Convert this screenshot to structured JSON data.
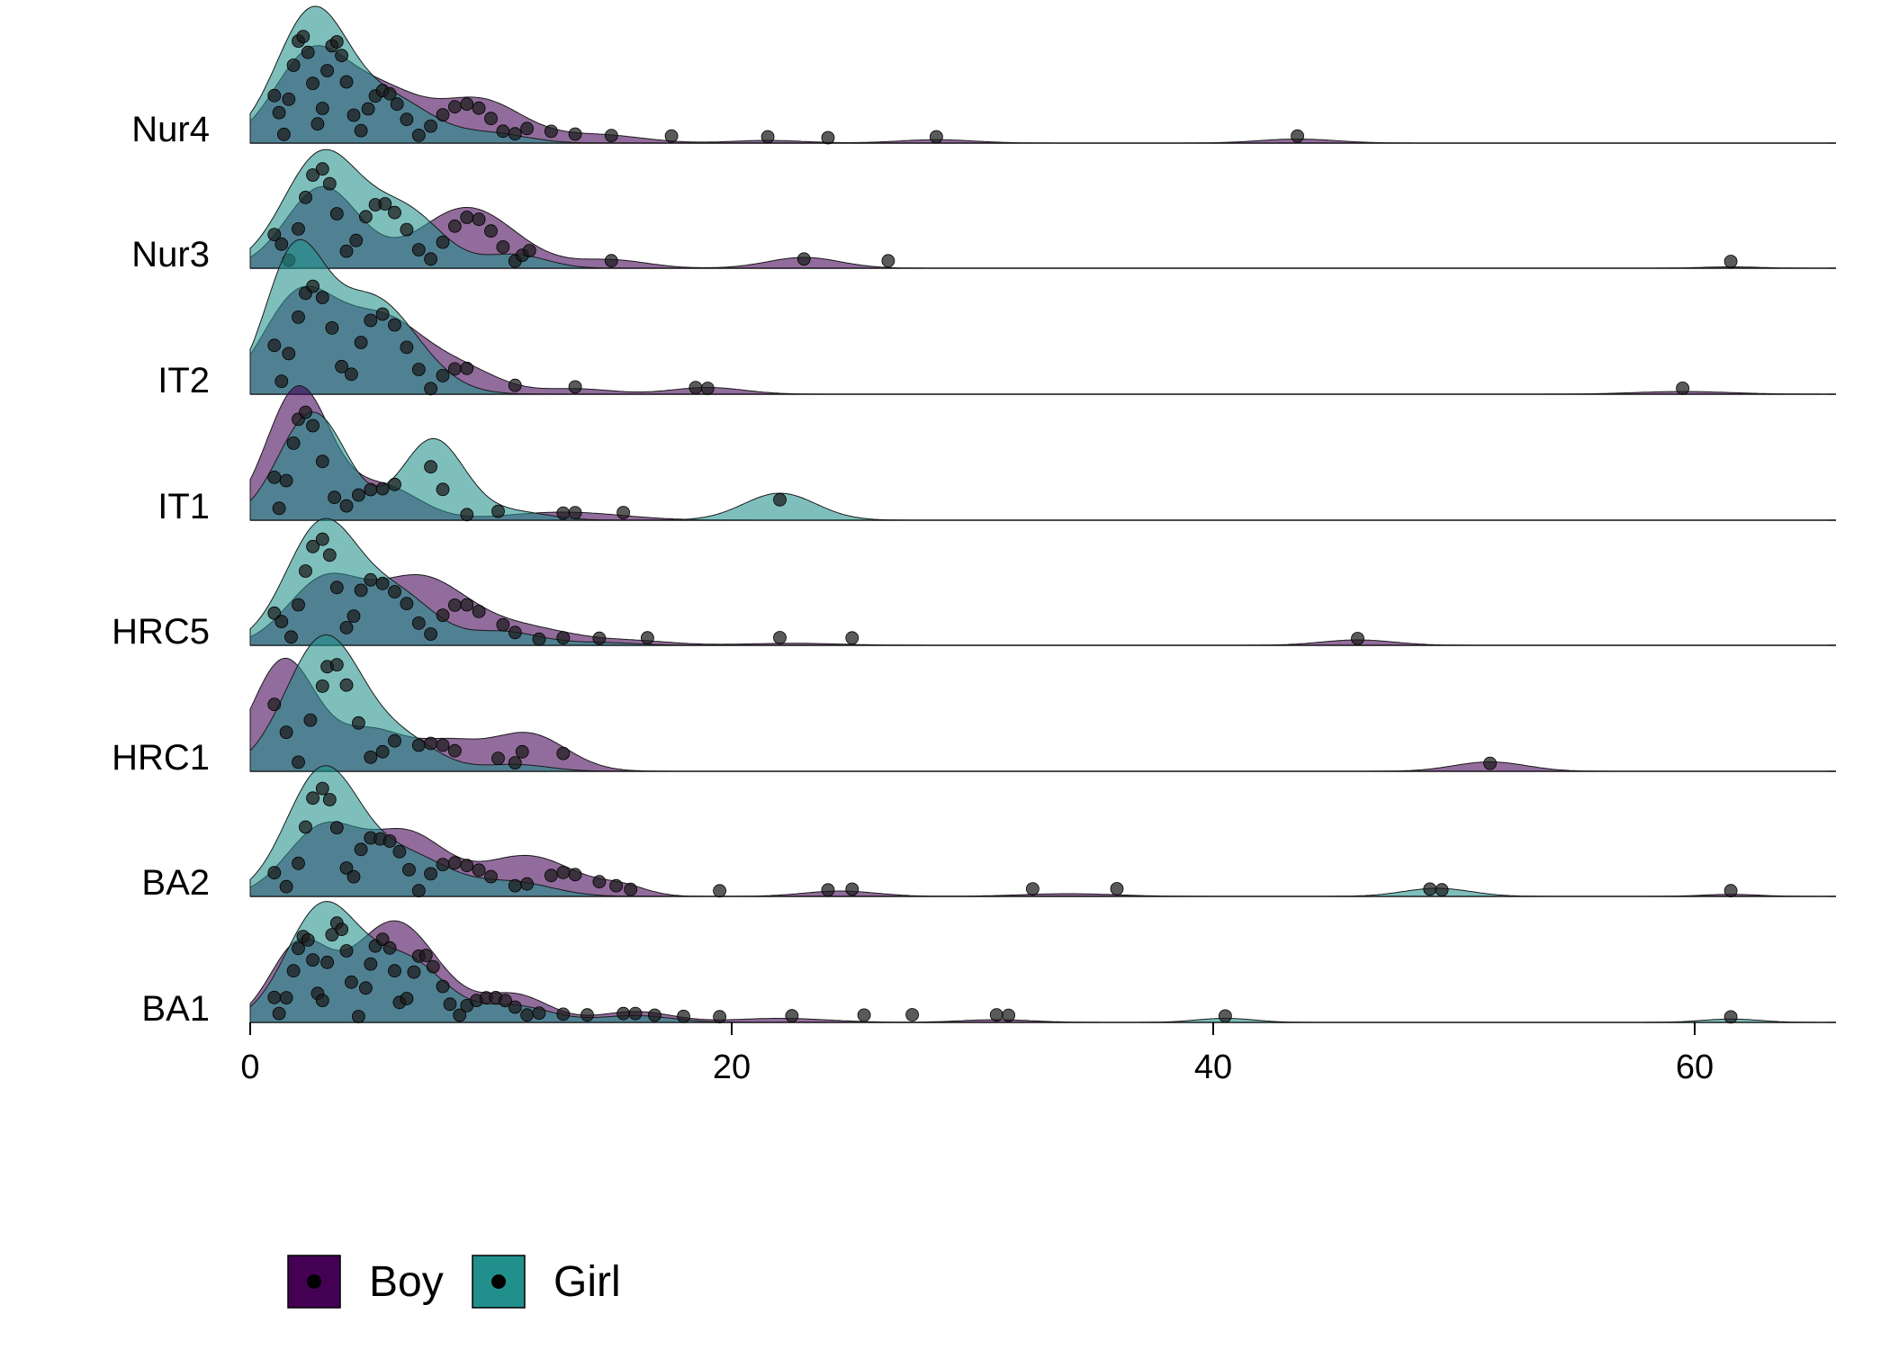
{
  "chart_data": {
    "type": "ridgeline",
    "title": "",
    "xlabel": "",
    "ylabel": "",
    "xlim": [
      0,
      66
    ],
    "x_ticks": [
      0,
      20,
      40,
      60
    ],
    "categories": [
      "BA1",
      "BA2",
      "HRC1",
      "HRC5",
      "IT1",
      "IT2",
      "Nur3",
      "Nur4"
    ],
    "series": [
      {
        "name": "Boy",
        "color": "#440154"
      },
      {
        "name": "Girl",
        "color": "#21908C"
      }
    ],
    "legend": {
      "position": "bottom-left",
      "entries": [
        "Boy",
        "Girl"
      ]
    },
    "grid": false,
    "densities": {
      "BA1": {
        "Boy": [
          [
            2,
            0.55,
            1.2
          ],
          [
            6,
            0.75,
            1.8
          ],
          [
            11,
            0.2,
            1.4
          ],
          [
            16,
            0.08,
            1.5
          ],
          [
            22,
            0.03,
            2
          ],
          [
            31,
            0.02,
            1.5
          ]
        ],
        "Girl": [
          [
            3,
            0.85,
            1.5
          ],
          [
            6.5,
            0.45,
            1.6
          ],
          [
            11,
            0.12,
            1.5
          ],
          [
            16,
            0.05,
            1.5
          ],
          [
            40.5,
            0.03,
            1.2
          ],
          [
            61.5,
            0.025,
            1.2
          ]
        ]
      },
      "BA2": {
        "Boy": [
          [
            3,
            0.5,
            1.5
          ],
          [
            6.5,
            0.45,
            1.6
          ],
          [
            11.5,
            0.3,
            2
          ],
          [
            15.5,
            0.06,
            1
          ],
          [
            24.5,
            0.04,
            1.5
          ],
          [
            34,
            0.02,
            2
          ],
          [
            61.5,
            0.015,
            1.2
          ]
        ],
        "Girl": [
          [
            3,
            0.92,
            1.5
          ],
          [
            6.5,
            0.3,
            1.8
          ],
          [
            11,
            0.1,
            1.6
          ],
          [
            49.3,
            0.06,
            1.4
          ]
        ]
      },
      "HRC1": {
        "Boy": [
          [
            1.4,
            0.82,
            1.3
          ],
          [
            5,
            0.3,
            1.5
          ],
          [
            8.2,
            0.18,
            1.3
          ],
          [
            11.5,
            0.28,
            1.6
          ],
          [
            51.5,
            0.07,
            1.5
          ]
        ],
        "Girl": [
          [
            3.1,
            1.0,
            1.6
          ],
          [
            6.5,
            0.2,
            1.4
          ],
          [
            11,
            0.05,
            1.4
          ]
        ]
      },
      "HRC5": {
        "Boy": [
          [
            3,
            0.45,
            1.5
          ],
          [
            7,
            0.5,
            2
          ],
          [
            11.5,
            0.12,
            2
          ],
          [
            16,
            0.03,
            1.6
          ],
          [
            22.5,
            0.015,
            2
          ],
          [
            46,
            0.04,
            1.5
          ]
        ],
        "Girl": [
          [
            3,
            0.9,
            1.5
          ],
          [
            6.2,
            0.35,
            1.5
          ],
          [
            10.5,
            0.1,
            1.5
          ],
          [
            14.5,
            0.02,
            1.5
          ]
        ]
      },
      "IT1": {
        "Boy": [
          [
            2,
            0.98,
            1.3
          ],
          [
            5.5,
            0.25,
            1.5
          ],
          [
            13,
            0.06,
            2.4
          ]
        ],
        "Girl": [
          [
            2.6,
            0.8,
            1.4
          ],
          [
            7.6,
            0.6,
            1.3
          ],
          [
            11,
            0.06,
            1.4
          ],
          [
            22,
            0.2,
            1.5
          ]
        ]
      },
      "IT2": {
        "Boy": [
          [
            2,
            0.7,
            1.5
          ],
          [
            5.5,
            0.55,
            1.8
          ],
          [
            9,
            0.15,
            1.5
          ],
          [
            13.5,
            0.04,
            1.5
          ],
          [
            19,
            0.05,
            1.5
          ],
          [
            59.5,
            0.02,
            2
          ]
        ],
        "Girl": [
          [
            1.8,
            0.95,
            1.2
          ],
          [
            5,
            0.72,
            1.9
          ]
        ]
      },
      "Nur3": {
        "Boy": [
          [
            3,
            0.6,
            1.5
          ],
          [
            9,
            0.45,
            2
          ],
          [
            15,
            0.06,
            1.5
          ],
          [
            23,
            0.08,
            1.5
          ],
          [
            61.5,
            0.01,
            1.2
          ]
        ],
        "Girl": [
          [
            3,
            0.85,
            1.6
          ],
          [
            6.5,
            0.4,
            1.5
          ],
          [
            11,
            0.1,
            1.3
          ]
        ]
      },
      "Nur4": {
        "Boy": [
          [
            2.5,
            0.65,
            1.5
          ],
          [
            5.5,
            0.35,
            1.6
          ],
          [
            9.5,
            0.32,
            1.8
          ],
          [
            14.5,
            0.06,
            1.8
          ],
          [
            21.5,
            0.02,
            1.5
          ],
          [
            28.5,
            0.025,
            1.6
          ],
          [
            43.5,
            0.03,
            1.6
          ]
        ],
        "Girl": [
          [
            2.6,
            0.98,
            1.5
          ],
          [
            6,
            0.3,
            1.6
          ],
          [
            10,
            0.07,
            1.5
          ]
        ]
      }
    },
    "points": {
      "BA1": [
        1,
        1.2,
        1.5,
        1.8,
        2,
        2.2,
        2.4,
        2.6,
        2.8,
        3,
        3.2,
        3.4,
        3.6,
        3.8,
        4,
        4.2,
        4.5,
        4.8,
        5,
        5.2,
        5.5,
        5.8,
        6,
        6.2,
        6.5,
        6.8,
        7,
        7.3,
        7.6,
        8,
        8.3,
        8.7,
        9,
        9.4,
        9.8,
        10.2,
        10.6,
        11,
        11.5,
        12,
        13,
        14,
        15.5,
        16,
        16.8,
        18,
        19.5,
        22.5,
        25.5,
        27.5,
        31,
        31.5,
        40.5,
        61.5
      ],
      "BA2": [
        1,
        1.5,
        2,
        2.3,
        2.6,
        3,
        3.3,
        3.6,
        4,
        4.3,
        4.6,
        5,
        5.4,
        5.8,
        6.2,
        6.6,
        7,
        7.5,
        8,
        8.5,
        9,
        9.5,
        10,
        11,
        11.5,
        12.5,
        13,
        13.5,
        14.5,
        15.2,
        15.8,
        19.5,
        24,
        25,
        32.5,
        36,
        49,
        49.5,
        61.5
      ],
      "HRC1": [
        1,
        1.5,
        2,
        2.5,
        3,
        3.2,
        3.6,
        4,
        4.5,
        5,
        5.5,
        6,
        7,
        7.5,
        8,
        8.5,
        10.3,
        11,
        11.3,
        13,
        51.5
      ],
      "HRC5": [
        1,
        1.3,
        1.7,
        2,
        2.3,
        2.6,
        3,
        3.3,
        3.6,
        4,
        4.3,
        4.6,
        5,
        5.5,
        6,
        6.5,
        7,
        7.5,
        8,
        8.5,
        9,
        9.5,
        10.5,
        11,
        12,
        13,
        14.5,
        16.5,
        22,
        25,
        46
      ],
      "IT1": [
        1,
        1.2,
        1.5,
        1.8,
        2,
        2.3,
        2.6,
        3,
        3.5,
        4,
        4.5,
        5,
        5.5,
        6,
        7.5,
        8,
        9,
        10.3,
        13,
        13.5,
        15.5,
        22
      ],
      "IT2": [
        1,
        1.3,
        1.6,
        2,
        2.3,
        2.6,
        3,
        3.4,
        3.8,
        4.2,
        4.6,
        5,
        5.5,
        6,
        6.5,
        7,
        7.5,
        8,
        8.5,
        9,
        11,
        13.5,
        18.5,
        19,
        59.5
      ],
      "Nur3": [
        1,
        1.3,
        1.6,
        2,
        2.3,
        2.6,
        3,
        3.3,
        3.6,
        4,
        4.4,
        4.8,
        5.2,
        5.6,
        6,
        6.5,
        7,
        7.5,
        8,
        8.5,
        9,
        9.5,
        10,
        10.5,
        11,
        11.3,
        11.6,
        15,
        23,
        26.5,
        61.5
      ],
      "Nur4": [
        1,
        1.2,
        1.4,
        1.6,
        1.8,
        2,
        2.2,
        2.4,
        2.6,
        2.8,
        3,
        3.2,
        3.4,
        3.6,
        3.8,
        4,
        4.3,
        4.6,
        4.9,
        5.2,
        5.5,
        5.8,
        6.1,
        6.5,
        7,
        7.5,
        8,
        8.5,
        9,
        9.5,
        10,
        10.5,
        11,
        11.5,
        12.5,
        13.5,
        15,
        17.5,
        21.5,
        24,
        28.5,
        43.5
      ]
    }
  }
}
